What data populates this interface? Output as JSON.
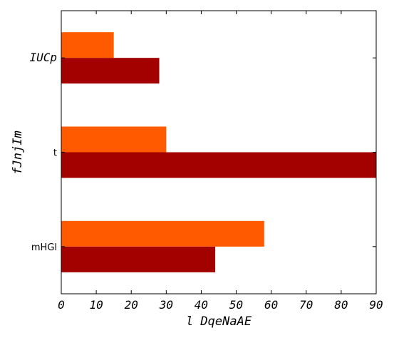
{
  "chart_data": {
    "type": "bar",
    "orientation": "horizontal",
    "categories": [
      "IUCp",
      "t",
      "mHGl"
    ],
    "series": [
      {
        "values": [
          28,
          90,
          44
        ],
        "color": "#a30000"
      },
      {
        "values": [
          15,
          30,
          58
        ],
        "color": "#ff5a00"
      }
    ],
    "xlabel": "l DqeNaAE",
    "ylabel": "fJnjIm",
    "xlim": [
      0,
      90
    ],
    "xticks": [
      0,
      10,
      20,
      30,
      40,
      50,
      60,
      70,
      80,
      90
    ],
    "grid": false,
    "legend": "none"
  }
}
